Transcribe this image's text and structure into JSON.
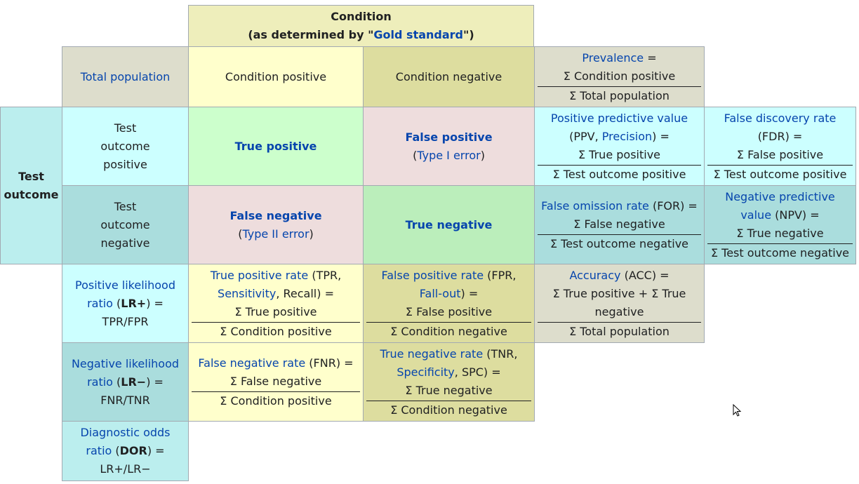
{
  "header": {
    "condition": "Condition",
    "determined_prefix": "(as determined by \"",
    "gold_standard": "Gold standard",
    "determined_suffix": "\")"
  },
  "total_population": "Total population",
  "condition_positive": "Condition positive",
  "condition_negative": "Condition negative",
  "prevalence": {
    "label": "Prevalence",
    "eq": " =",
    "num": "Σ Condition positive",
    "den": "Σ Total population"
  },
  "test_outcome": {
    "line1": "Test",
    "line2": "outcome"
  },
  "test_positive": {
    "l1": "Test",
    "l2": "outcome",
    "l3": "positive"
  },
  "test_negative": {
    "l1": "Test",
    "l2": "outcome",
    "l3": "negative"
  },
  "true_positive": "True positive",
  "false_positive": {
    "label": "False positive",
    "paren_open": "(",
    "link": "Type I error",
    "paren_close": ")"
  },
  "false_negative": {
    "label": "False negative",
    "paren_open": "(",
    "link": "Type II error",
    "paren_close": ")"
  },
  "true_negative": "True negative",
  "ppv": {
    "link1": "Positive predictive value",
    "pre": "(PPV, ",
    "link2": "Precision",
    "post": ") =",
    "num": "Σ True positive",
    "den": "Σ Test outcome positive"
  },
  "fdr": {
    "link": "False discovery rate",
    "abbr": "(FDR) =",
    "num": "Σ False positive",
    "den": "Σ Test outcome positive"
  },
  "for": {
    "link": "False omission rate",
    "abbr": " (FOR) =",
    "num": "Σ False negative",
    "den": "Σ Test outcome negative"
  },
  "npv": {
    "link1": "Negative predictive",
    "link2": "value",
    "abbr": " (NPV) =",
    "num": "Σ True negative",
    "den": "Σ Test outcome negative"
  },
  "lr_pos": {
    "link1": "Positive likelihood",
    "link2": "ratio",
    "pre": " (",
    "bold": "LR+",
    "post": ") =",
    "formula": "TPR/FPR"
  },
  "tpr": {
    "link1": "True positive rate",
    "abbr1": " (TPR,",
    "link2": "Sensitivity",
    "rest": ", Recall) =",
    "num": "Σ True positive",
    "den": "Σ Condition positive"
  },
  "fpr": {
    "link1": "False positive rate",
    "abbr1": " (FPR,",
    "link2": "Fall-out",
    "rest": ") =",
    "num": "Σ False positive",
    "den": "Σ Condition negative"
  },
  "acc": {
    "link": "Accuracy",
    "abbr": " (ACC) =",
    "num1": "Σ True positive + Σ True",
    "num2": "negative",
    "den": "Σ Total population"
  },
  "lr_neg": {
    "link1": "Negative likelihood",
    "link2": "ratio",
    "pre": " (",
    "bold": "LR−",
    "post": ") =",
    "formula": "FNR/TNR"
  },
  "fnr": {
    "link": "False negative rate",
    "abbr": " (FNR) =",
    "num": "Σ False negative",
    "den": "Σ Condition positive"
  },
  "tnr": {
    "link1": "True negative rate",
    "abbr1": " (TNR,",
    "link2": "Specificity",
    "rest": ", SPC) =",
    "num": "Σ True negative",
    "den": "Σ Condition negative"
  },
  "dor": {
    "link1": "Diagnostic odds",
    "link2": "ratio",
    "pre": " (",
    "bold": "DOR",
    "post": ") =",
    "formula": "LR+/LR−"
  },
  "colors": {
    "link": "#0645ad",
    "text": "#202122",
    "border": "#a2a9b1"
  }
}
